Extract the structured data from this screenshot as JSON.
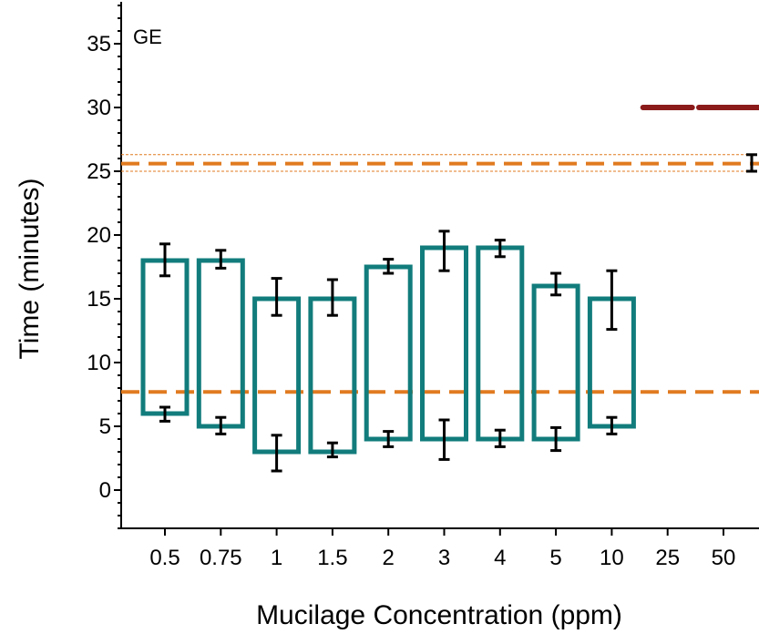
{
  "chart_data": {
    "type": "box",
    "panel_label": "GE",
    "xlabel": "Mucilage Concentration (ppm)",
    "ylabel": "Time (minutes)",
    "categories": [
      "0.5",
      "0.75",
      "1",
      "1.5",
      "2",
      "3",
      "4",
      "5",
      "10",
      "25",
      "50"
    ],
    "ylim": [
      -3,
      38
    ],
    "y_ticks": [
      0,
      5,
      10,
      15,
      20,
      25,
      30,
      35
    ],
    "grid": false,
    "boxes": [
      {
        "category": "0.5",
        "bottom": 6,
        "top": 18,
        "bottom_err": [
          5.4,
          6.5
        ],
        "top_err": [
          16.8,
          19.3
        ]
      },
      {
        "category": "0.75",
        "bottom": 5,
        "top": 18,
        "bottom_err": [
          4.4,
          5.7
        ],
        "top_err": [
          17.4,
          18.8
        ]
      },
      {
        "category": "1",
        "bottom": 3,
        "top": 15,
        "bottom_err": [
          1.5,
          4.3
        ],
        "top_err": [
          13.7,
          16.6
        ]
      },
      {
        "category": "1.5",
        "bottom": 3,
        "top": 15,
        "bottom_err": [
          2.6,
          3.7
        ],
        "top_err": [
          13.7,
          16.5
        ]
      },
      {
        "category": "2",
        "bottom": 4,
        "top": 17.5,
        "bottom_err": [
          3.4,
          4.6
        ],
        "top_err": [
          17.0,
          18.1
        ]
      },
      {
        "category": "3",
        "bottom": 4,
        "top": 19,
        "bottom_err": [
          2.4,
          5.5
        ],
        "top_err": [
          17.2,
          20.3
        ]
      },
      {
        "category": "4",
        "bottom": 4,
        "top": 19,
        "bottom_err": [
          3.4,
          4.7
        ],
        "top_err": [
          18.3,
          19.6
        ]
      },
      {
        "category": "5",
        "bottom": 4,
        "top": 16,
        "bottom_err": [
          3.1,
          4.9
        ],
        "top_err": [
          15.3,
          17.0
        ]
      },
      {
        "category": "10",
        "bottom": 5,
        "top": 15,
        "bottom_err": [
          4.4,
          5.7
        ],
        "top_err": [
          12.6,
          17.2
        ]
      }
    ],
    "reference_lines": [
      {
        "y": 25.6,
        "style": "dashed",
        "color": "#e07b20",
        "band": [
          25.0,
          26.3
        ]
      },
      {
        "y": 7.7,
        "style": "dashed",
        "color": "#e07b20"
      }
    ],
    "high_bars": [
      {
        "x_range": [
          "25",
          "50"
        ],
        "y": 30,
        "color": "#8b1a1a"
      }
    ],
    "edge_error_bar": {
      "y": 25.6,
      "err": [
        25.0,
        26.3
      ]
    },
    "colors": {
      "box": "#127c7c",
      "error_bar": "#000000",
      "reference": "#e07b20",
      "dark_red": "#8b1a1a"
    }
  }
}
